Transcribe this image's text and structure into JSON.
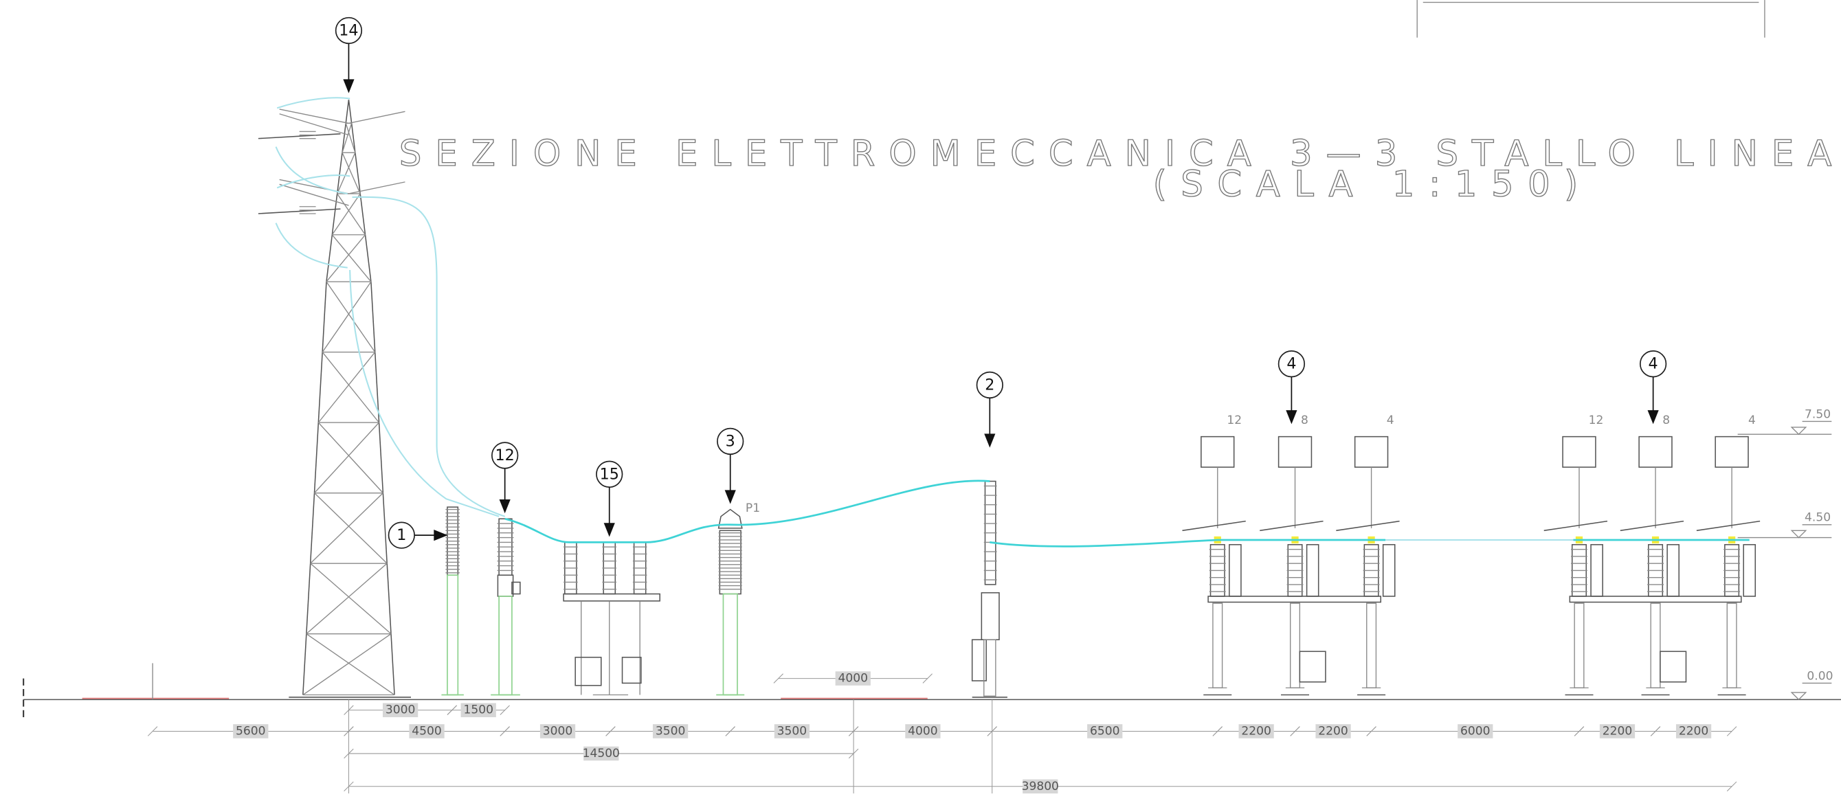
{
  "title": {
    "line1": "SEZIONE ELETTROMECCANICA 3—3 STALLO LINEA",
    "line2": "(SCALA 1:150)"
  },
  "callouts": [
    "14",
    "1",
    "12",
    "15",
    "3",
    "2",
    "4",
    "4"
  ],
  "annotation": "P1",
  "phase_labels": [
    "12",
    "8",
    "4",
    "12",
    "8",
    "4"
  ],
  "elevations": [
    "7.50",
    "4.50",
    "0.00"
  ],
  "dimensions": {
    "upper_row": [
      "3000",
      "1500"
    ],
    "main_row": [
      "5600",
      "4500",
      "3000",
      "3500",
      "3500",
      "4000",
      "6500",
      "2200",
      "2200",
      "6000",
      "2200",
      "2200"
    ],
    "partial_total": "14500",
    "total": "39800",
    "free_span": "4000"
  }
}
